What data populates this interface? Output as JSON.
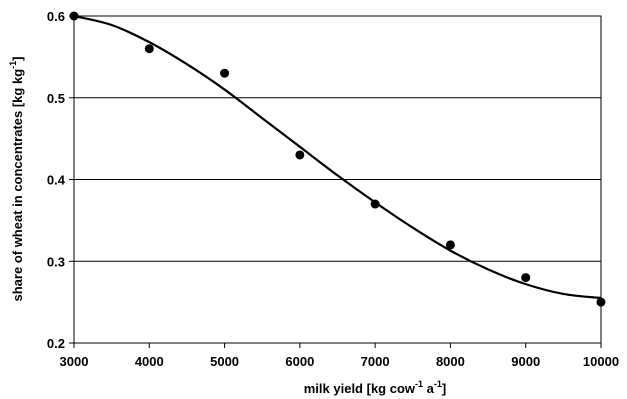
{
  "chart_data": {
    "type": "scatter",
    "title": "",
    "xlabel": {
      "main": "milk yield [kg cow",
      "sup1": "-1",
      "mid": " a",
      "sup2": "-1",
      "end": "]"
    },
    "ylabel": {
      "main": "share of wheat in concentrates [kg kg",
      "sup": "-1",
      "end": "]"
    },
    "xlim": [
      3000,
      10000
    ],
    "ylim": [
      0.2,
      0.6
    ],
    "xticks": [
      3000,
      4000,
      5000,
      6000,
      7000,
      8000,
      9000,
      10000
    ],
    "yticks": [
      0.2,
      0.3,
      0.4,
      0.5,
      0.6
    ],
    "xtick_labels": [
      "3000",
      "4000",
      "5000",
      "6000",
      "7000",
      "8000",
      "9000",
      "10000"
    ],
    "ytick_labels": [
      "0.2",
      "0.3",
      "0.4",
      "0.5",
      "0.6"
    ],
    "grid": "horizontal",
    "series": [
      {
        "type": "scatter",
        "x": [
          3000,
          4000,
          5000,
          6000,
          7000,
          8000,
          9000,
          10000
        ],
        "y": [
          0.6,
          0.56,
          0.53,
          0.43,
          0.37,
          0.32,
          0.28,
          0.25
        ],
        "color": "#000000"
      },
      {
        "type": "line",
        "x": [
          3000,
          3500,
          4000,
          4500,
          5000,
          5500,
          6000,
          6500,
          7000,
          7500,
          8000,
          8500,
          9000,
          9500,
          10000
        ],
        "y": [
          0.6,
          0.589,
          0.568,
          0.541,
          0.51,
          0.475,
          0.44,
          0.405,
          0.372,
          0.341,
          0.313,
          0.29,
          0.272,
          0.26,
          0.255
        ],
        "color": "#000000"
      }
    ]
  }
}
